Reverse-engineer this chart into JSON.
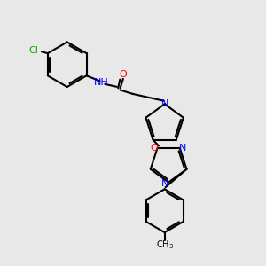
{
  "bg_color": "#e8e8e8",
  "bond_color": "#000000",
  "atom_colors": {
    "N": "#0000ff",
    "O": "#ff0000",
    "Cl": "#00aa00",
    "C": "#000000",
    "H": "#000000"
  },
  "title": "N-(3-chlorophenyl)-2-{2-[3-(4-methylphenyl)-1,2,4-oxadiazol-5-yl]-1H-pyrrol-1-yl}acetamide"
}
